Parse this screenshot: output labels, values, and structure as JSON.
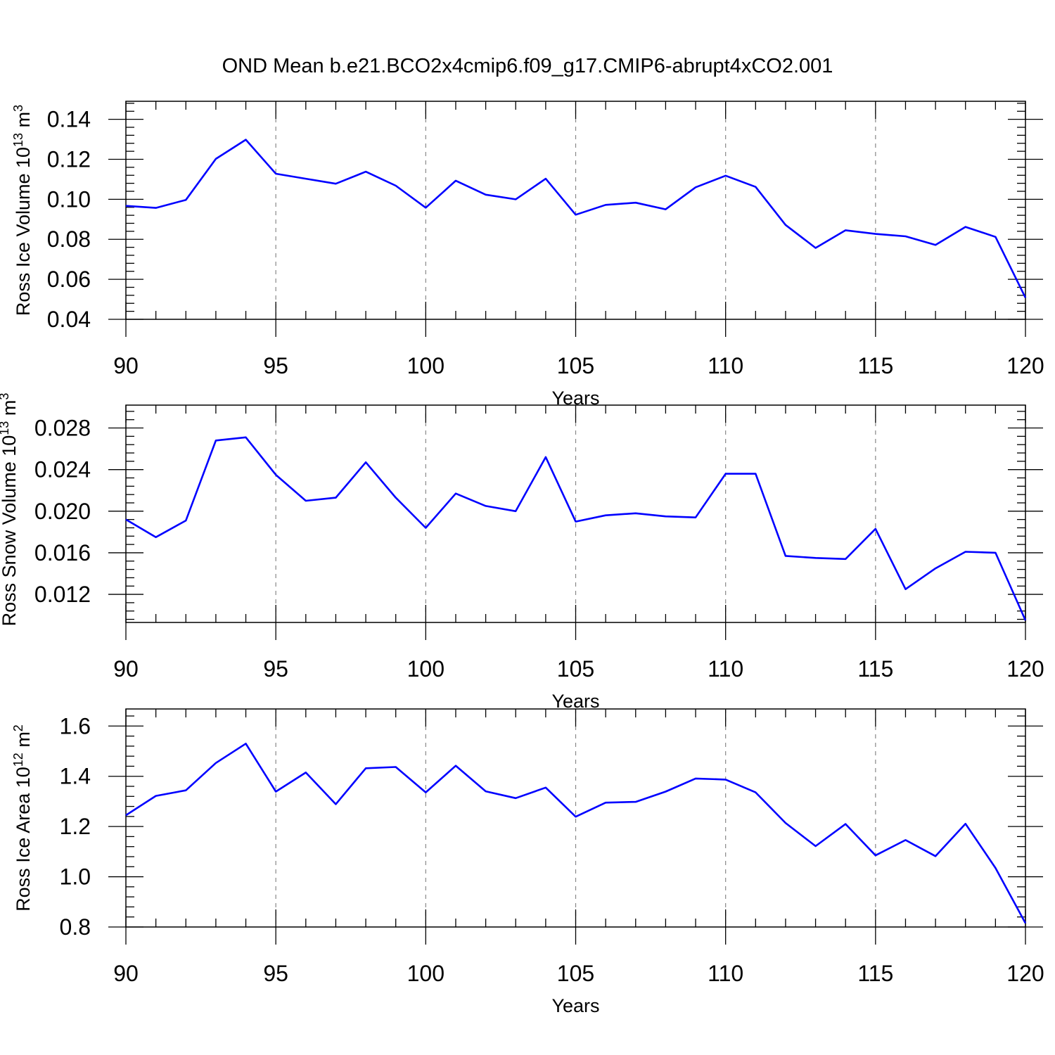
{
  "title": "OND Mean b.e21.BCO2x4cmip6.f09_g17.CMIP6-abrupt4xCO2.001",
  "colors": {
    "series": "#0000ff",
    "grid": "#888888",
    "axis": "#000000"
  },
  "chart_data": [
    {
      "type": "line",
      "xlabel": "Years",
      "ylabel": "Ross Ice Volume 10",
      "ylabel_sup": "13",
      "ylabel_unit": "m",
      "ylabel_unit_sup": "3",
      "xlim": [
        90,
        120
      ],
      "ylim": [
        0.04,
        0.149
      ],
      "xticks": [
        90,
        95,
        100,
        105,
        110,
        115,
        120
      ],
      "xtick_labels": [
        "90",
        "95",
        "100",
        "105",
        "110",
        "115",
        "120"
      ],
      "yticks": [
        0.04,
        0.06,
        0.08,
        0.1,
        0.12,
        0.14
      ],
      "ytick_labels": [
        "0.04",
        "0.06",
        "0.08",
        "0.10",
        "0.12",
        "0.14"
      ],
      "grid": "vertical dashed at major x ticks",
      "x": [
        90,
        91,
        92,
        93,
        94,
        95,
        96,
        97,
        98,
        99,
        100,
        101,
        102,
        103,
        104,
        105,
        106,
        107,
        108,
        109,
        110,
        111,
        112,
        113,
        114,
        115,
        116,
        117,
        118,
        119,
        120
      ],
      "values": [
        0.0967,
        0.0957,
        0.0997,
        0.1202,
        0.1298,
        0.1128,
        0.1103,
        0.1078,
        0.1138,
        0.1068,
        0.0958,
        0.1093,
        0.1023,
        0.1,
        0.1103,
        0.0923,
        0.0972,
        0.0983,
        0.095,
        0.106,
        0.1118,
        0.1062,
        0.0872,
        0.0757,
        0.0845,
        0.0827,
        0.0815,
        0.0772,
        0.0862,
        0.0812,
        0.0508
      ]
    },
    {
      "type": "line",
      "xlabel": "Years",
      "ylabel": "Ross Snow Volume 10",
      "ylabel_sup": "13",
      "ylabel_unit": "m",
      "ylabel_unit_sup": "3",
      "xlim": [
        90,
        120
      ],
      "ylim": [
        0.0093,
        0.0302
      ],
      "xticks": [
        90,
        95,
        100,
        105,
        110,
        115,
        120
      ],
      "xtick_labels": [
        "90",
        "95",
        "100",
        "105",
        "110",
        "115",
        "120"
      ],
      "yticks": [
        0.012,
        0.016,
        0.02,
        0.024,
        0.028
      ],
      "ytick_labels": [
        "0.012",
        "0.016",
        "0.020",
        "0.024",
        "0.028"
      ],
      "grid": "vertical dashed at major x ticks",
      "x": [
        90,
        91,
        92,
        93,
        94,
        95,
        96,
        97,
        98,
        99,
        100,
        101,
        102,
        103,
        104,
        105,
        106,
        107,
        108,
        109,
        110,
        111,
        112,
        113,
        114,
        115,
        116,
        117,
        118,
        119,
        120
      ],
      "values": [
        0.0192,
        0.0175,
        0.0191,
        0.0268,
        0.0271,
        0.0235,
        0.021,
        0.0213,
        0.0247,
        0.0213,
        0.0184,
        0.0217,
        0.0205,
        0.02,
        0.0252,
        0.019,
        0.0196,
        0.0198,
        0.0195,
        0.0194,
        0.0236,
        0.0236,
        0.0157,
        0.0155,
        0.0154,
        0.0183,
        0.0125,
        0.0145,
        0.0161,
        0.016,
        0.0095
      ]
    },
    {
      "type": "line",
      "xlabel": "Years",
      "ylabel": "Ross Ice Area 10",
      "ylabel_sup": "12",
      "ylabel_unit": "m",
      "ylabel_unit_sup": "2",
      "xlim": [
        90,
        120
      ],
      "ylim": [
        0.8,
        1.668
      ],
      "xticks": [
        90,
        95,
        100,
        105,
        110,
        115,
        120
      ],
      "xtick_labels": [
        "90",
        "95",
        "100",
        "105",
        "110",
        "115",
        "120"
      ],
      "yticks": [
        0.8,
        1.0,
        1.2,
        1.4,
        1.6
      ],
      "ytick_labels": [
        "0.8",
        "1.0",
        "1.2",
        "1.4",
        "1.6"
      ],
      "grid": "vertical dashed at major x ticks",
      "x": [
        90,
        91,
        92,
        93,
        94,
        95,
        96,
        97,
        98,
        99,
        100,
        101,
        102,
        103,
        104,
        105,
        106,
        107,
        108,
        109,
        110,
        111,
        112,
        113,
        114,
        115,
        116,
        117,
        118,
        119,
        120
      ],
      "values": [
        1.245,
        1.322,
        1.344,
        1.453,
        1.53,
        1.339,
        1.415,
        1.289,
        1.432,
        1.437,
        1.336,
        1.442,
        1.34,
        1.313,
        1.355,
        1.239,
        1.295,
        1.298,
        1.339,
        1.391,
        1.387,
        1.336,
        1.214,
        1.122,
        1.21,
        1.085,
        1.146,
        1.082,
        1.211,
        1.035,
        0.815
      ]
    }
  ]
}
